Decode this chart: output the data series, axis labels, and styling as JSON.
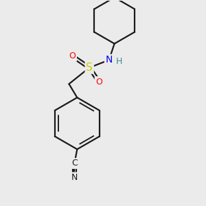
{
  "background_color": "#ebebeb",
  "line_color": "#1a1a1a",
  "line_width": 1.6,
  "atom_colors": {
    "S": "#cccc00",
    "N": "#0000ff",
    "O": "#ff0000",
    "H": "#448888"
  },
  "figsize": [
    3.0,
    3.0
  ],
  "dpi": 100,
  "xlim": [
    1.0,
    7.5
  ],
  "ylim": [
    0.5,
    8.0
  ]
}
